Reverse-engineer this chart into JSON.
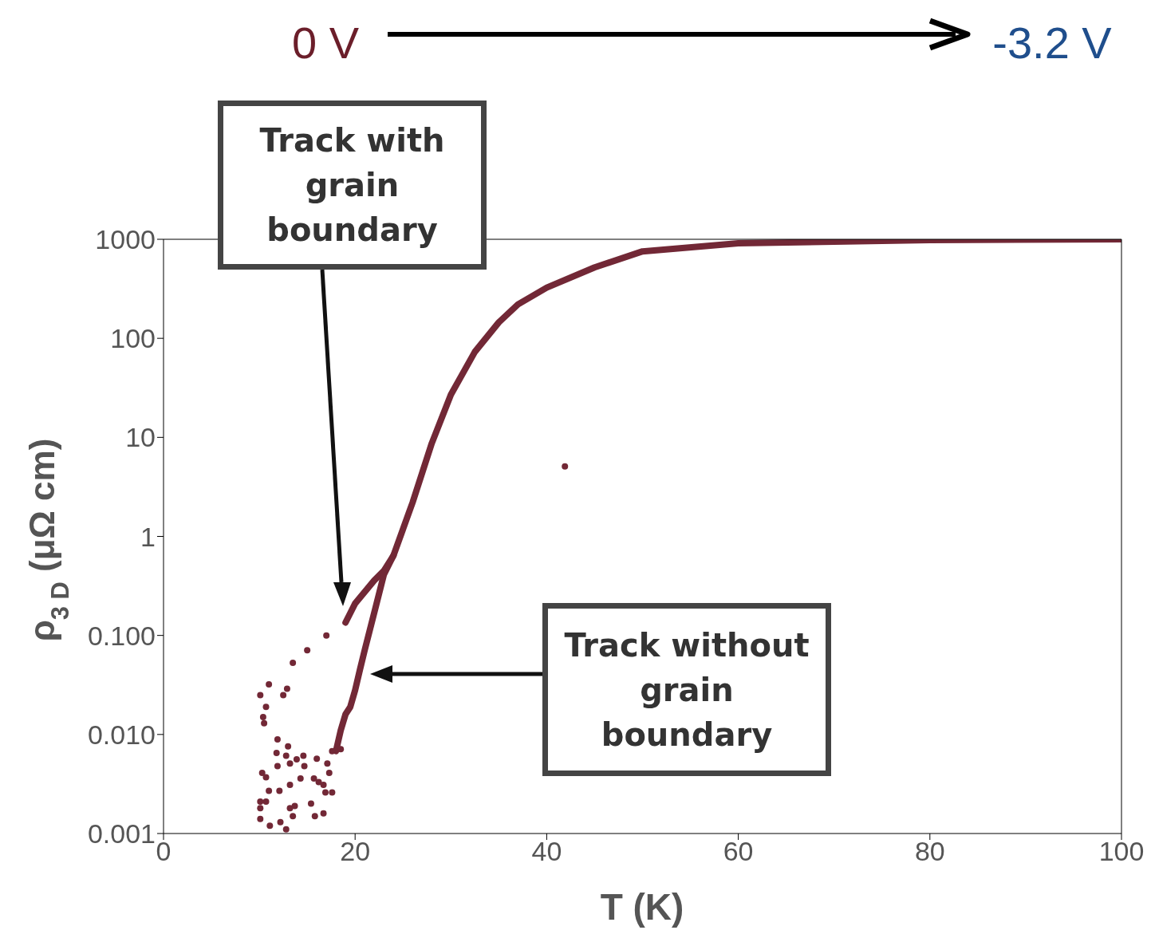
{
  "chart_data": {
    "type": "scatter",
    "xlabel": "T (K)",
    "ylabel": "ρ$_{3 D}$ (μΩ cm)",
    "annotations": [
      "0 V",
      "-3.2 V",
      "Track with grain boundary",
      "Track without grain boundary"
    ],
    "xlim": [
      0,
      100
    ],
    "xticks": [
      0,
      20,
      40,
      60,
      80,
      100
    ],
    "ylim": [
      0.001,
      1000
    ],
    "yticks": [
      {
        "value": 0.001,
        "label": "0.001"
      },
      {
        "value": 0.01,
        "label": "0.010"
      },
      {
        "value": 0.1,
        "label": "0.100"
      },
      1,
      10,
      100,
      1000
    ],
    "log": "y",
    "grid": false,
    "series": [
      {
        "type": "line",
        "marker": "none",
        "color": "#722836",
        "x": [
          19,
          20,
          22,
          23,
          24,
          26,
          28,
          30,
          32.5,
          35,
          37,
          40,
          45,
          50,
          60,
          80,
          100
        ],
        "values": [
          0.135,
          0.21,
          0.36,
          0.45,
          0.64,
          2.2,
          8.7,
          27,
          73,
          145,
          220,
          325,
          520,
          755,
          910,
          980,
          1000
        ]
      },
      {
        "type": "line",
        "marker": "none",
        "color": "#722836",
        "x": [
          18,
          18.5,
          19,
          19.5,
          20,
          20.5,
          21,
          22,
          23,
          24
        ],
        "values": [
          0.0068,
          0.011,
          0.016,
          0.019,
          0.028,
          0.045,
          0.071,
          0.17,
          0.41,
          0.64
        ]
      },
      {
        "marker": "circle",
        "color": "#722836",
        "x": [
          10.4,
          10.5,
          10.7,
          12.5,
          12.9,
          10.1,
          15,
          13.5,
          17,
          11,
          11.9,
          13,
          11.8,
          12.8,
          14.6,
          13.9,
          13.2,
          11.9,
          14.7,
          16,
          17.1,
          17.3,
          10.3,
          10.7,
          14.3,
          15.7,
          16.2,
          16.7,
          13.2,
          11,
          12.1,
          16.9,
          17.6,
          10.1,
          10.7,
          15.4,
          10.1,
          13.2,
          13.7,
          13.5,
          15.8,
          16.7,
          10.1,
          12.2,
          11.1,
          12.8,
          17.6,
          18.5,
          41.9
        ],
        "values": [
          0.015,
          0.013,
          0.019,
          0.025,
          0.029,
          0.025,
          0.071,
          0.053,
          0.1,
          0.032,
          0.0089,
          0.0076,
          0.0065,
          0.0061,
          0.0061,
          0.0056,
          0.0051,
          0.0048,
          0.0048,
          0.0057,
          0.0051,
          0.0041,
          0.0041,
          0.0037,
          0.0036,
          0.0036,
          0.0033,
          0.0031,
          0.0031,
          0.0027,
          0.0027,
          0.0026,
          0.0026,
          0.0021,
          0.0021,
          0.002,
          0.0018,
          0.0018,
          0.0019,
          0.0015,
          0.0015,
          0.0016,
          0.0014,
          0.0013,
          0.0012,
          0.0011,
          0.0068,
          0.0071,
          5.1
        ]
      }
    ]
  }
}
